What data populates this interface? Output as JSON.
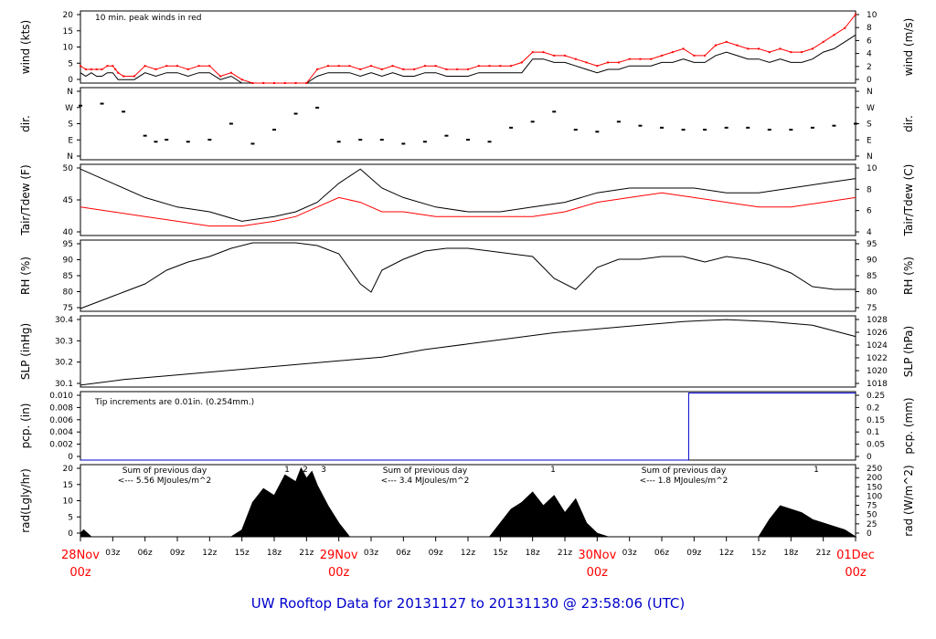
{
  "title": "UW Rooftop Data for 20131127  to  20131130 @ 23:58:06  (UTC)",
  "colors": {
    "black": "#000000",
    "red": "#ff0000",
    "blue": "#0000cc",
    "purple": "#aa00cc",
    "title": "#0000cc"
  },
  "x_axis": {
    "hour_ticks": [
      "03z",
      "06z",
      "09z",
      "12z",
      "15z",
      "18z",
      "21z",
      "03z",
      "06z",
      "09z",
      "12z",
      "15z",
      "18z",
      "21z",
      "03z",
      "06z",
      "09z",
      "12z",
      "15z",
      "18z",
      "21z"
    ],
    "day_labels": [
      {
        "day": "28Nov",
        "hour": "00z"
      },
      {
        "day": "29Nov",
        "hour": "00z"
      },
      {
        "day": "30Nov",
        "hour": "00z"
      },
      {
        "day": "01Dec",
        "hour": "00z"
      }
    ]
  },
  "panels": {
    "wind": {
      "left_label": "wind (kts)",
      "right_label": "wind (m/s)",
      "left_ticks": [
        "0",
        "5",
        "10",
        "15",
        "20"
      ],
      "right_ticks": [
        "0",
        "2",
        "4",
        "6",
        "8",
        "10"
      ],
      "annotation": "10 min. peak winds in red"
    },
    "dir": {
      "left_label": "dir.",
      "right_label": "dir.",
      "ticks": [
        "N",
        "E",
        "S",
        "W",
        "N"
      ]
    },
    "temp": {
      "left_label": "Tair/Tdew (F)",
      "right_label": "Tair/Tdew (C)",
      "left_ticks": [
        "40",
        "45",
        "50"
      ],
      "right_ticks": [
        "4",
        "6",
        "8",
        "10"
      ]
    },
    "rh": {
      "left_label": "RH (%)",
      "right_label": "RH (%)",
      "ticks": [
        "75",
        "80",
        "85",
        "90",
        "95"
      ]
    },
    "slp": {
      "left_label": "SLP (inHg)",
      "right_label": "SLP (hPa)",
      "left_ticks": [
        "30.1",
        "30.2",
        "30.3",
        "30.4"
      ],
      "right_ticks": [
        "1018",
        "1020",
        "1022",
        "1024",
        "1026",
        "1028"
      ]
    },
    "pcp": {
      "left_label": "pcp. (in)",
      "right_label": "pcp. (mm)",
      "left_ticks": [
        "0",
        "0.002",
        "0.004",
        "0.006",
        "0.008",
        "0.010"
      ],
      "right_ticks": [
        "0",
        "0.05",
        "0.1",
        "0.15",
        "0.2",
        "0.25"
      ],
      "annotation": "Tip increments are 0.01in. (0.254mm.)"
    },
    "rad": {
      "left_label": "rad(Lgly/hr)",
      "right_label": "rad (W/m^2)",
      "left_ticks": [
        "0",
        "5",
        "10",
        "15",
        "20"
      ],
      "right_ticks": [
        "0",
        "25",
        "50",
        "75",
        "100",
        "150",
        "200",
        "250"
      ],
      "daily_sums": [
        {
          "line1": "Sum of previous day",
          "line2": "<--- 5.56 MJoules/m^2"
        },
        {
          "line1": "Sum of previous day",
          "line2": "<--- 3.4 MJoules/m^2"
        },
        {
          "line1": "Sum of previous day",
          "line2": "<--- 1.8 MJoules/m^2"
        }
      ],
      "markers": [
        "1",
        "2",
        "3",
        "1",
        "1"
      ]
    }
  },
  "chart_data": [
    {
      "type": "line",
      "ylabel": "wind (kts)",
      "ylim": [
        0,
        21
      ],
      "x": [
        0,
        0.5,
        1,
        1.5,
        2,
        2.5,
        3,
        3.25,
        3.5,
        4,
        5,
        6,
        7,
        8,
        9,
        10,
        11,
        12,
        13,
        14,
        15,
        16,
        17,
        18,
        19,
        20,
        21,
        22,
        23,
        24,
        25,
        26,
        27,
        28,
        29,
        30,
        31,
        32,
        33,
        34,
        35,
        36,
        37,
        38,
        39,
        40,
        41,
        42,
        43,
        44,
        45,
        46,
        47,
        48,
        49,
        50,
        51,
        52,
        53,
        54,
        55,
        56,
        57,
        58,
        59,
        60,
        61,
        62,
        63,
        64,
        65,
        66,
        67,
        68,
        69,
        70,
        71,
        72
      ],
      "series": [
        {
          "name": "wind",
          "color": "#000000",
          "values": [
            3,
            2,
            3,
            2,
            2,
            3,
            3,
            2,
            1,
            1,
            1,
            3,
            2,
            3,
            3,
            2,
            3,
            3,
            1,
            2,
            0,
            0,
            0,
            0,
            0,
            0,
            0,
            2,
            3,
            3,
            3,
            2,
            3,
            2,
            3,
            2,
            2,
            3,
            3,
            2,
            2,
            2,
            3,
            3,
            3,
            3,
            3,
            7,
            7,
            6,
            6,
            5,
            4,
            3,
            4,
            4,
            5,
            5,
            5,
            6,
            6,
            7,
            6,
            6,
            8,
            9,
            8,
            7,
            7,
            6,
            7,
            6,
            6,
            7,
            9,
            10,
            12,
            14
          ]
        },
        {
          "name": "10 min. peak winds",
          "color": "#ff0000",
          "values": [
            5,
            4,
            4,
            4,
            4,
            5,
            5,
            4,
            3,
            2,
            2,
            5,
            4,
            5,
            5,
            4,
            5,
            5,
            2,
            3,
            1,
            0,
            0,
            0,
            0,
            0,
            0,
            4,
            5,
            5,
            5,
            4,
            5,
            4,
            5,
            4,
            4,
            5,
            5,
            4,
            4,
            4,
            5,
            5,
            5,
            5,
            6,
            9,
            9,
            8,
            8,
            7,
            6,
            5,
            6,
            6,
            7,
            7,
            7,
            8,
            9,
            10,
            8,
            8,
            11,
            12,
            11,
            10,
            10,
            9,
            10,
            9,
            9,
            10,
            12,
            14,
            16,
            20
          ]
        }
      ]
    },
    {
      "type": "scatter",
      "ylabel": "dir.",
      "ylim": [
        0,
        360
      ],
      "x": [
        0,
        2,
        4,
        6,
        7,
        8,
        10,
        12,
        14,
        16,
        18,
        20,
        22,
        24,
        26,
        28,
        30,
        32,
        34,
        36,
        38,
        40,
        42,
        44,
        46,
        48,
        50,
        52,
        54,
        56,
        58,
        60,
        62,
        64,
        66,
        68,
        70,
        72
      ],
      "series": [
        {
          "name": "dir",
          "values": [
            270,
            280,
            240,
            120,
            90,
            100,
            90,
            100,
            180,
            80,
            150,
            230,
            260,
            90,
            100,
            100,
            80,
            90,
            120,
            100,
            90,
            160,
            190,
            240,
            150,
            140,
            190,
            170,
            160,
            150,
            150,
            160,
            160,
            150,
            150,
            160,
            170,
            180
          ]
        }
      ]
    },
    {
      "type": "line",
      "ylabel": "Tair/Tdew (F)",
      "ylim": [
        37,
        52
      ],
      "x": [
        0,
        3,
        6,
        9,
        12,
        15,
        18,
        20,
        22,
        24,
        26,
        28,
        30,
        33,
        36,
        39,
        42,
        45,
        48,
        51,
        54,
        57,
        60,
        63,
        66,
        69,
        72
      ],
      "series": [
        {
          "name": "Tair",
          "color": "#000000",
          "values": [
            51,
            48,
            45,
            43,
            42,
            40,
            41,
            42,
            44,
            48,
            51,
            47,
            45,
            43,
            42,
            42,
            43,
            44,
            46,
            47,
            47,
            47,
            46,
            46,
            47,
            48,
            49
          ]
        },
        {
          "name": "Tdew",
          "color": "#ff0000",
          "values": [
            43,
            42,
            41,
            40,
            39,
            39,
            40,
            41,
            43,
            45,
            44,
            42,
            42,
            41,
            41,
            41,
            41,
            42,
            44,
            45,
            46,
            45,
            44,
            43,
            43,
            44,
            45
          ]
        }
      ]
    },
    {
      "type": "line",
      "ylabel": "RH (%)",
      "ylim": [
        72,
        98
      ],
      "x": [
        0,
        2,
        4,
        6,
        8,
        10,
        12,
        14,
        16,
        18,
        20,
        22,
        24,
        26,
        27,
        28,
        30,
        32,
        34,
        36,
        38,
        40,
        42,
        44,
        46,
        48,
        50,
        52,
        54,
        56,
        58,
        60,
        62,
        64,
        66,
        68,
        70,
        72
      ],
      "series": [
        {
          "name": "RH",
          "color": "#000000",
          "values": [
            73,
            76,
            79,
            82,
            87,
            90,
            92,
            95,
            97,
            97,
            97,
            96,
            93,
            82,
            79,
            87,
            91,
            94,
            95,
            95,
            94,
            93,
            92,
            84,
            80,
            88,
            91,
            91,
            92,
            92,
            90,
            92,
            91,
            89,
            86,
            81,
            80,
            80
          ]
        }
      ]
    },
    {
      "type": "line",
      "ylabel": "SLP (inHg)",
      "ylim": [
        30.03,
        30.41
      ],
      "x": [
        0,
        4,
        8,
        12,
        16,
        20,
        24,
        28,
        32,
        36,
        40,
        44,
        48,
        52,
        56,
        60,
        64,
        68,
        72
      ],
      "series": [
        {
          "name": "SLP",
          "color": "#000000",
          "values": [
            30.04,
            30.07,
            30.09,
            30.11,
            30.13,
            30.15,
            30.17,
            30.19,
            30.23,
            30.26,
            30.29,
            30.32,
            30.34,
            30.36,
            30.38,
            30.39,
            30.38,
            30.36,
            30.3
          ]
        }
      ]
    },
    {
      "type": "line",
      "ylabel": "pcp. (in)",
      "ylim": [
        0,
        0.0102
      ],
      "x": [
        0,
        56.5,
        56.5,
        72
      ],
      "series": [
        {
          "name": "pcp",
          "color": "#0000cc",
          "values": [
            0,
            0,
            0.01,
            0.01
          ]
        }
      ]
    },
    {
      "type": "area",
      "ylabel": "rad(Lgly/hr)",
      "ylim": [
        0,
        21
      ],
      "x": [
        0,
        0.3,
        1,
        14,
        15,
        16,
        17,
        18,
        19,
        20,
        20.5,
        21,
        21.5,
        22,
        23,
        24,
        25,
        38,
        39,
        40,
        41,
        42,
        43,
        44,
        45,
        46,
        47,
        48,
        49,
        63,
        64,
        65,
        66,
        67,
        68,
        69,
        70,
        71,
        72
      ],
      "series": [
        {
          "name": "rad",
          "color": "#000000",
          "values": [
            1,
            2,
            0,
            0,
            2,
            10,
            14,
            12,
            18,
            16,
            20,
            17,
            19,
            15,
            9,
            4,
            0,
            0,
            4,
            8,
            10,
            13,
            9,
            12,
            7,
            11,
            4,
            1,
            0,
            0,
            5,
            9,
            8,
            7,
            5,
            4,
            3,
            2,
            0
          ]
        }
      ]
    }
  ]
}
